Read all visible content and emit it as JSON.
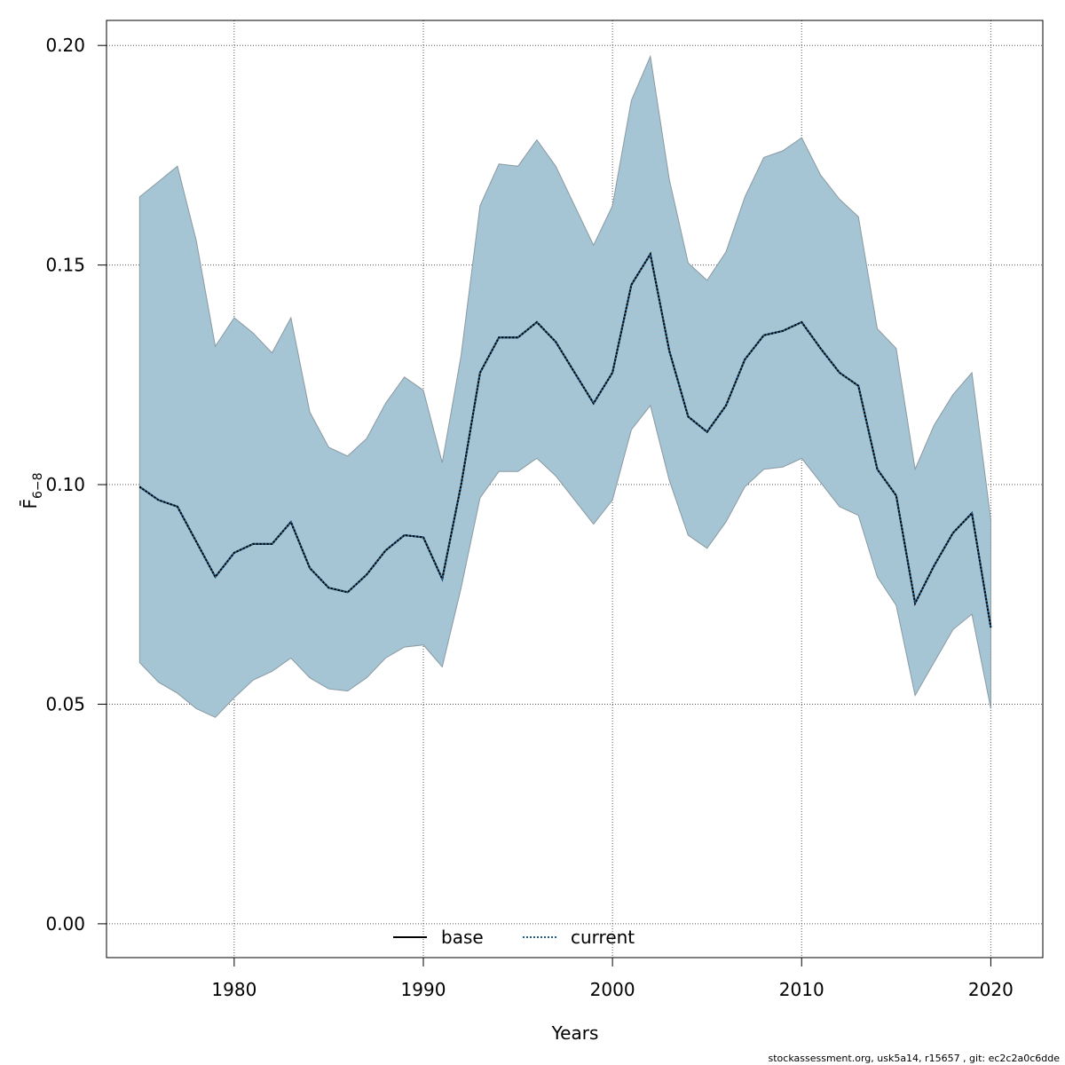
{
  "chart_data": {
    "type": "line",
    "title": "",
    "xlabel": "Years",
    "ylabel": "F̄",
    "ylabel_subscript": "6−8",
    "xlim": [
      1973.25,
      2022.75
    ],
    "ylim": [
      -0.0077,
      0.2057
    ],
    "x_ticks": [
      1980,
      1990,
      2000,
      2010,
      2020
    ],
    "y_ticks": [
      0.0,
      0.05,
      0.1,
      0.15,
      0.2
    ],
    "x_tick_labels": [
      "1980",
      "1990",
      "2000",
      "2010",
      "2020"
    ],
    "y_tick_labels": [
      "0.00",
      "0.05",
      "0.10",
      "0.15",
      "0.20"
    ],
    "grid": true,
    "legend_position": "bottom-center",
    "legend": [
      {
        "label": "base",
        "style": "solid",
        "color": "#000000"
      },
      {
        "label": "current",
        "style": "dotted",
        "color": "#1f5f8b"
      }
    ],
    "band_color": "#a5c4d4",
    "band_edge_color": "#8a9aa2",
    "x": [
      1975,
      1976,
      1977,
      1978,
      1979,
      1980,
      1981,
      1982,
      1983,
      1984,
      1985,
      1986,
      1987,
      1988,
      1989,
      1990,
      1991,
      1992,
      1993,
      1994,
      1995,
      1996,
      1997,
      1998,
      1999,
      2000,
      2001,
      2002,
      2003,
      2004,
      2005,
      2006,
      2007,
      2008,
      2009,
      2010,
      2011,
      2012,
      2013,
      2014,
      2015,
      2016,
      2017,
      2018,
      2019,
      2020
    ],
    "series": [
      {
        "name": "base",
        "style": "solid",
        "values": [
          0.0995,
          0.0965,
          0.095,
          0.087,
          0.079,
          0.0845,
          0.0865,
          0.0865,
          0.0915,
          0.081,
          0.0765,
          0.0755,
          0.0795,
          0.085,
          0.0885,
          0.088,
          0.0785,
          0.1,
          0.1255,
          0.1335,
          0.1335,
          0.137,
          0.1325,
          0.1255,
          0.1185,
          0.1255,
          0.1455,
          0.1525,
          0.1305,
          0.1155,
          0.112,
          0.118,
          0.1285,
          0.134,
          0.135,
          0.137,
          0.131,
          0.1255,
          0.1225,
          0.1035,
          0.0975,
          0.073,
          0.0815,
          0.089,
          0.0935,
          0.0675
        ]
      },
      {
        "name": "current",
        "style": "dotted",
        "values": [
          0.0995,
          0.0965,
          0.095,
          0.087,
          0.079,
          0.0845,
          0.0865,
          0.0865,
          0.0915,
          0.081,
          0.0765,
          0.0755,
          0.0795,
          0.085,
          0.0885,
          0.088,
          0.0785,
          0.1,
          0.1255,
          0.1335,
          0.1335,
          0.137,
          0.1325,
          0.1255,
          0.1185,
          0.1255,
          0.1455,
          0.1525,
          0.1305,
          0.1155,
          0.112,
          0.118,
          0.1285,
          0.134,
          0.135,
          0.137,
          0.131,
          0.1255,
          0.1225,
          0.1035,
          0.0975,
          0.073,
          0.0815,
          0.089,
          0.0935,
          0.0675
        ]
      }
    ],
    "band": {
      "upper": [
        0.1655,
        0.169,
        0.1725,
        0.1555,
        0.1315,
        0.138,
        0.1345,
        0.13,
        0.138,
        0.1165,
        0.1085,
        0.1065,
        0.1105,
        0.1185,
        0.1245,
        0.1215,
        0.105,
        0.1295,
        0.1635,
        0.173,
        0.1725,
        0.1785,
        0.1725,
        0.1635,
        0.1545,
        0.1635,
        0.1875,
        0.1975,
        0.1695,
        0.1505,
        0.1465,
        0.153,
        0.1655,
        0.1745,
        0.176,
        0.179,
        0.1705,
        0.165,
        0.161,
        0.1355,
        0.131,
        0.1035,
        0.1135,
        0.1205,
        0.1255,
        0.092
      ],
      "lower": [
        0.0595,
        0.055,
        0.0525,
        0.049,
        0.047,
        0.0515,
        0.0555,
        0.0575,
        0.0605,
        0.056,
        0.0535,
        0.053,
        0.056,
        0.0605,
        0.063,
        0.0635,
        0.0585,
        0.0765,
        0.097,
        0.103,
        0.103,
        0.106,
        0.102,
        0.0965,
        0.091,
        0.0965,
        0.1125,
        0.118,
        0.101,
        0.0885,
        0.0855,
        0.0915,
        0.0995,
        0.1035,
        0.104,
        0.106,
        0.1005,
        0.095,
        0.093,
        0.079,
        0.0725,
        0.052,
        0.0595,
        0.067,
        0.0705,
        0.049
      ]
    }
  },
  "footer": "stockassessment.org, usk5a14, r15657 , git: ec2c2a0c6dde"
}
